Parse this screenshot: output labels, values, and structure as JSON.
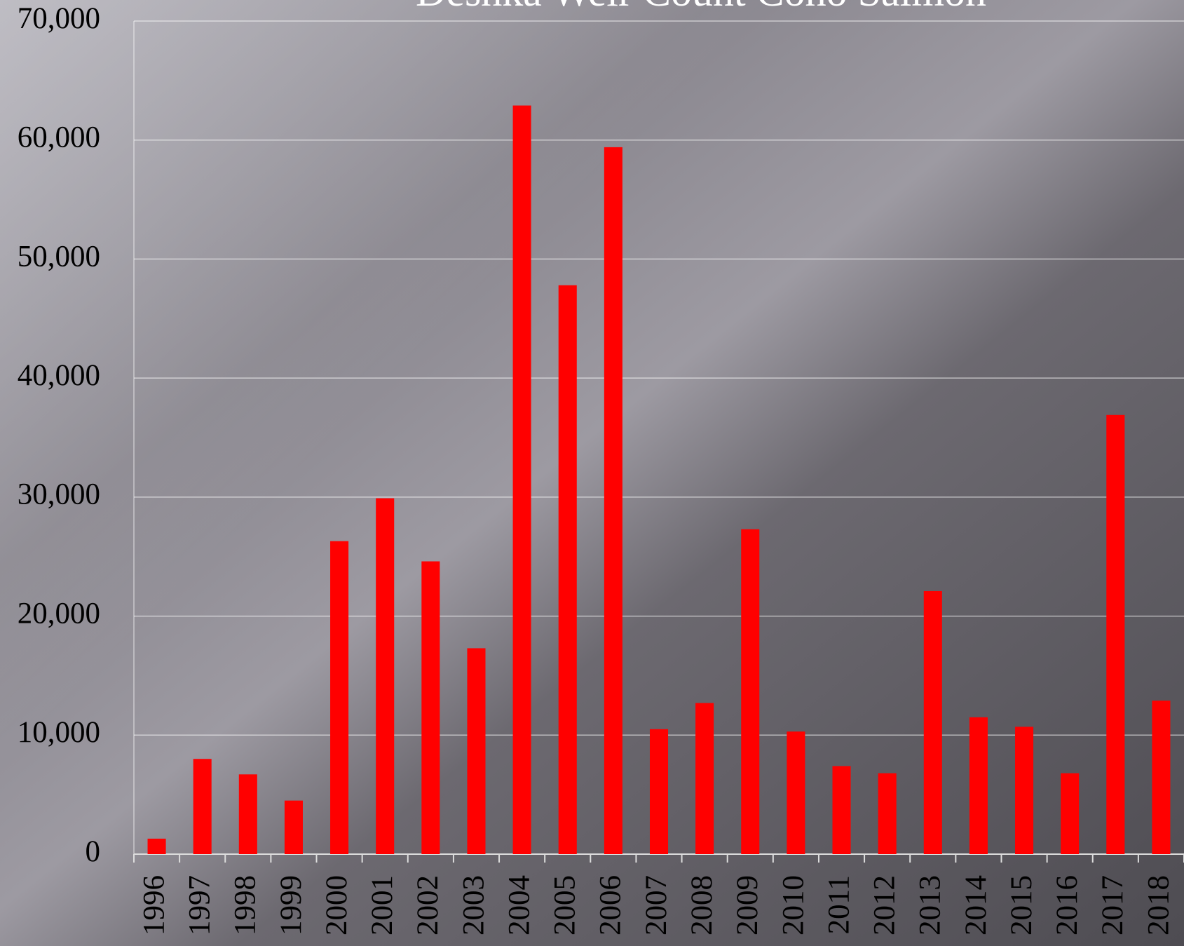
{
  "chart_data": {
    "type": "bar",
    "title": "Deshka Weir Count Coho Salmon",
    "categories": [
      "1996",
      "1997",
      "1998",
      "1999",
      "2000",
      "2001",
      "2002",
      "2003",
      "2004",
      "2005",
      "2006",
      "2007",
      "2008",
      "2009",
      "2010",
      "2011",
      "2012",
      "2013",
      "2014",
      "2015",
      "2016",
      "2017",
      "2018"
    ],
    "values": [
      1300,
      8000,
      6700,
      4500,
      26300,
      29900,
      24600,
      17300,
      62900,
      47800,
      59400,
      10500,
      12700,
      27300,
      10300,
      7400,
      6800,
      22100,
      11500,
      10700,
      6800,
      36900,
      12900
    ],
    "color": "#ff0000",
    "ylim": [
      0,
      70000
    ],
    "yticks": [
      0,
      {
        "value": 10000,
        "label": "10,000"
      },
      {
        "value": 20000,
        "label": "20,000"
      },
      {
        "value": 30000,
        "label": "30,000"
      },
      {
        "value": 40000,
        "label": "40,000"
      },
      {
        "value": 50000,
        "label": "50,000"
      },
      {
        "value": 60000,
        "label": "60,000"
      },
      {
        "value": 70000,
        "label": "70,000"
      }
    ],
    "grid": true
  }
}
